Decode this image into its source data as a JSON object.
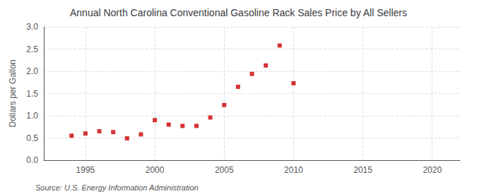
{
  "chart_data": {
    "type": "scatter",
    "title": "Annual North Carolina Conventional Gasoline Rack Sales Price by All Sellers",
    "ylabel": "Dollars per Gallon",
    "annotations": [
      "Source: U.S. Energy Information Administration"
    ],
    "x": [
      1994,
      1995,
      1996,
      1997,
      1998,
      1999,
      2000,
      2001,
      2002,
      2003,
      2004,
      2005,
      2006,
      2007,
      2008,
      2009,
      2010
    ],
    "values": [
      0.55,
      0.6,
      0.65,
      0.63,
      0.49,
      0.58,
      0.9,
      0.8,
      0.77,
      0.77,
      0.96,
      1.24,
      1.65,
      1.94,
      2.13,
      2.58,
      1.73
    ],
    "color": "#cc0000",
    "marker": "square",
    "xlim": [
      1992,
      2022
    ],
    "xticks": [
      1995,
      2000,
      2005,
      2010,
      2015,
      2020
    ],
    "ylim": [
      0.0,
      3.0
    ],
    "yticks": [
      {
        "value": 0.0,
        "label": "0.0"
      },
      0.5,
      {
        "value": 1.0,
        "label": "1.0"
      },
      1.5,
      {
        "value": 2.0,
        "label": "2.0"
      },
      2.5,
      {
        "value": 3.0,
        "label": "3.0"
      }
    ],
    "grid": true
  }
}
